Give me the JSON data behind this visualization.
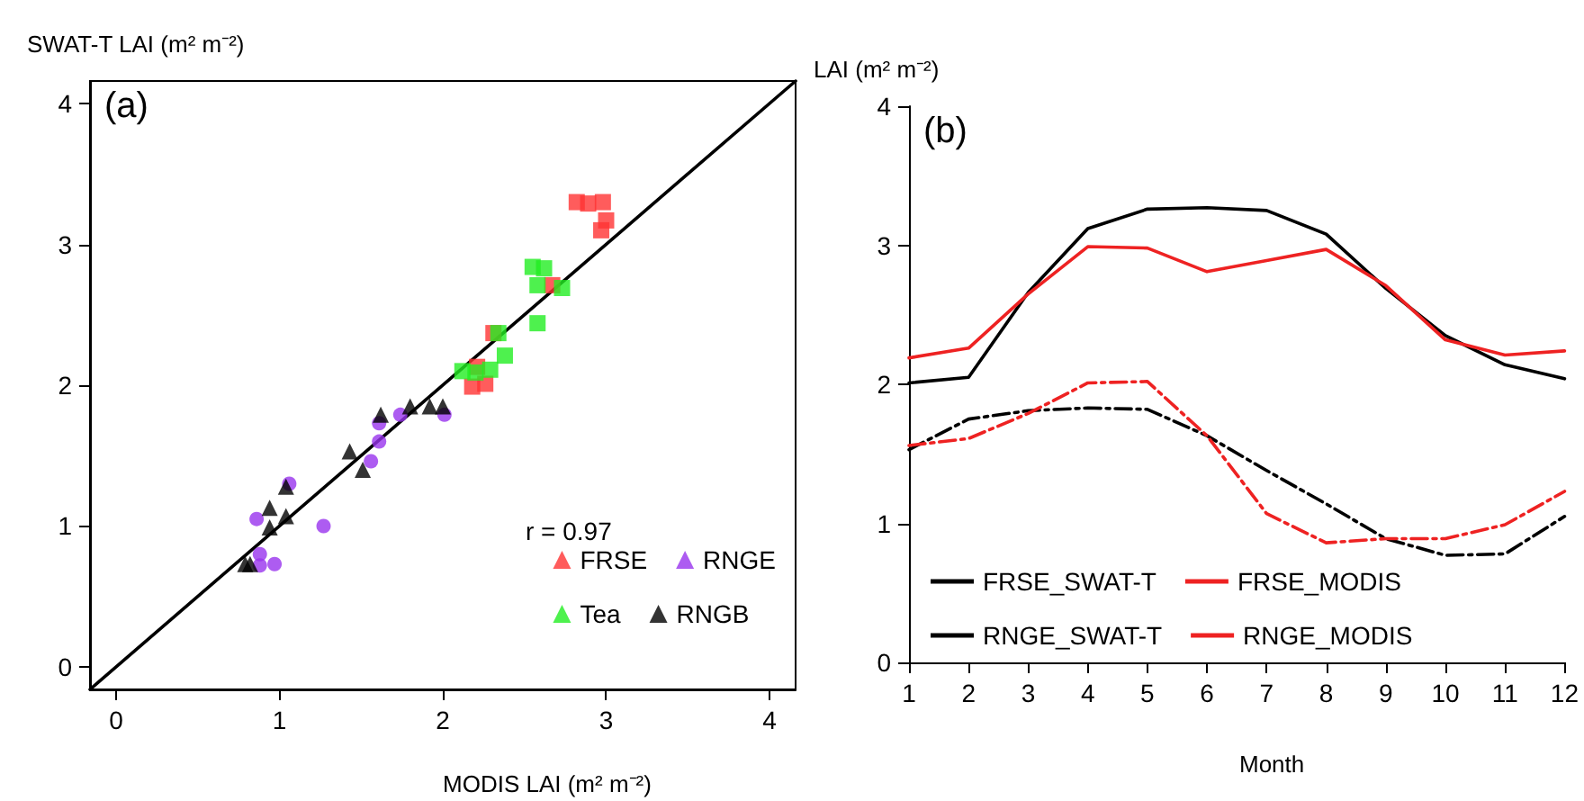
{
  "chart_data": [
    {
      "type": "scatter",
      "title": "(a)",
      "xlabel": "MODIS LAI (m² m⁻²)",
      "ylabel": "SWAT-T LAI (m² m⁻²)",
      "annotations": [
        "r = 0.97"
      ],
      "xlim": [
        -0.16,
        4.16
      ],
      "ylim": [
        -0.16,
        4.16
      ],
      "xticks": [
        0,
        1,
        2,
        3,
        4
      ],
      "yticks": [
        0,
        1,
        2,
        3,
        4
      ],
      "grid": false,
      "legend": "bottom right",
      "series": [
        {
          "name": "FRSE",
          "color": "#ff3333",
          "marker": "square",
          "x": [
            2.82,
            2.89,
            2.98,
            3.0,
            2.97,
            2.67,
            2.31,
            2.21,
            2.18,
            2.26
          ],
          "values": [
            3.3,
            3.29,
            3.3,
            3.17,
            3.1,
            2.71,
            2.37,
            2.13,
            1.99,
            2.01
          ]
        },
        {
          "name": "RNGE",
          "color": "#9933ee",
          "marker": "circle",
          "x": [
            1.61,
            1.74,
            2.01,
            1.61,
            1.56,
            1.06,
            0.86,
            1.27,
            0.88,
            0.88,
            0.97
          ],
          "values": [
            1.73,
            1.79,
            1.79,
            1.6,
            1.46,
            1.3,
            1.05,
            1.0,
            0.8,
            0.72,
            0.73
          ]
        },
        {
          "name": "Tea",
          "color": "#22ee22",
          "marker": "square",
          "x": [
            2.55,
            2.62,
            2.58,
            2.73,
            2.58,
            2.34,
            2.38,
            2.29,
            2.12,
            2.2
          ],
          "values": [
            2.84,
            2.83,
            2.71,
            2.69,
            2.44,
            2.37,
            2.21,
            2.11,
            2.1,
            2.09
          ]
        },
        {
          "name": "RNGB",
          "color": "#000000",
          "marker": "triangle",
          "x": [
            1.62,
            1.8,
            1.92,
            2.0,
            1.43,
            1.51,
            1.04,
            0.94,
            1.04,
            0.94,
            0.79,
            0.82
          ],
          "values": [
            1.79,
            1.85,
            1.85,
            1.85,
            1.53,
            1.4,
            1.28,
            1.13,
            1.07,
            0.99,
            0.73,
            0.73
          ]
        },
        {
          "type": "line",
          "color": "#000000",
          "marker": "none",
          "line_style": "solid",
          "x": [
            -0.16,
            4.16
          ],
          "values": [
            -0.16,
            4.16
          ]
        }
      ]
    },
    {
      "type": "line",
      "title": "(b)",
      "xlabel": "Month",
      "ylabel": "LAI (m² m⁻²)",
      "x": [
        1,
        2,
        3,
        4,
        5,
        6,
        7,
        8,
        9,
        10,
        11,
        12
      ],
      "xlim": [
        1,
        12
      ],
      "ylim": [
        0,
        4
      ],
      "xticks": [
        1,
        2,
        3,
        4,
        5,
        6,
        7,
        8,
        9,
        10,
        11,
        12
      ],
      "yticks": [
        0,
        1,
        2,
        3,
        4
      ],
      "grid": false,
      "legend": "bottom",
      "marker": "none",
      "series": [
        {
          "name": "FRSE_SWAT-T",
          "color": "#000000",
          "line_style": "solid",
          "values": [
            2.01,
            2.05,
            2.66,
            3.12,
            3.26,
            3.27,
            3.25,
            3.08,
            2.69,
            2.35,
            2.14,
            2.04
          ]
        },
        {
          "name": "FRSE_MODIS",
          "color": "#ee2222",
          "line_style": "solid",
          "values": [
            2.19,
            2.26,
            2.65,
            2.99,
            2.98,
            2.81,
            2.89,
            2.97,
            2.71,
            2.32,
            2.21,
            2.24
          ]
        },
        {
          "name": "RNGE_SWAT-T",
          "color": "#000000",
          "line_style": "dashed",
          "values": [
            1.53,
            1.75,
            1.81,
            1.83,
            1.82,
            1.63,
            1.38,
            1.14,
            0.89,
            0.77,
            0.78,
            1.05
          ]
        },
        {
          "name": "RNGE_MODIS",
          "color": "#ee2222",
          "line_style": "dashed",
          "values": [
            1.56,
            1.61,
            1.79,
            2.01,
            2.02,
            1.63,
            1.07,
            0.86,
            0.89,
            0.89,
            0.99,
            1.23
          ]
        }
      ]
    }
  ]
}
